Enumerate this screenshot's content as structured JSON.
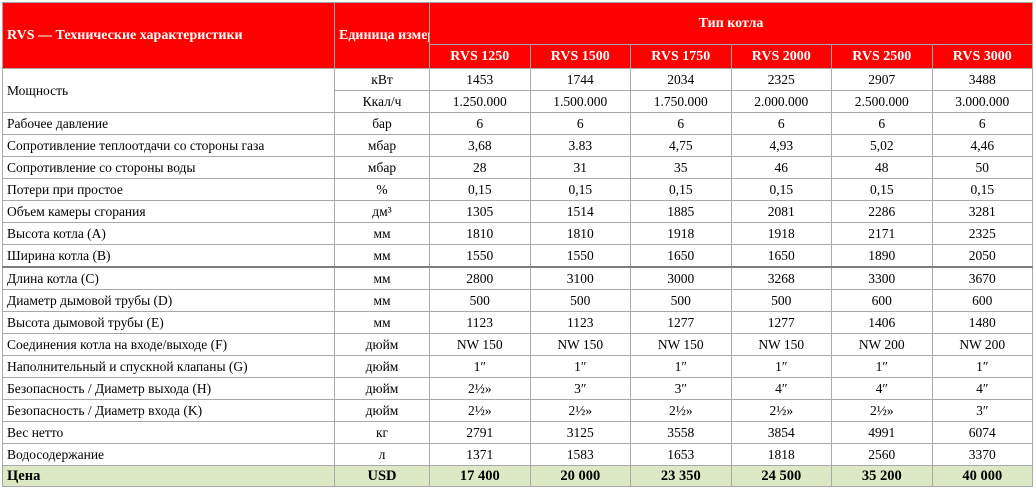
{
  "header": {
    "title": "RVS — Технические характеристики",
    "unit_label": "Единица измерения",
    "type_label": "Тип котла",
    "models": [
      "RVS 1250",
      "RVS 1500",
      "RVS 1750",
      "RVS 2000",
      "RVS 2500",
      "RVS 3000"
    ]
  },
  "power": {
    "label": "Мощность",
    "kw": {
      "unit": "кВт",
      "values": [
        "1453",
        "1744",
        "2034",
        "2325",
        "2907",
        "3488"
      ]
    },
    "kcal": {
      "unit": "Ккал/ч",
      "values": [
        "1.250.000",
        "1.500.000",
        "1.750.000",
        "2.000.000",
        "2.500.000",
        "3.000.000"
      ]
    }
  },
  "rows": [
    {
      "label": "Рабочее давление",
      "unit": "бар",
      "values": [
        "6",
        "6",
        "6",
        "6",
        "6",
        "6"
      ]
    },
    {
      "label": "Сопротивление теплоотдачи со стороны газа",
      "unit": "мбар",
      "values": [
        "3,68",
        "3.83",
        "4,75",
        "4,93",
        "5,02",
        "4,46"
      ]
    },
    {
      "label": "Сопротивление со стороны воды",
      "unit": "мбар",
      "values": [
        "28",
        "31",
        "35",
        "46",
        "48",
        "50"
      ]
    },
    {
      "label": "Потери при простое",
      "unit": "%",
      "values": [
        "0,15",
        "0,15",
        "0,15",
        "0,15",
        "0,15",
        "0,15"
      ]
    },
    {
      "label": "Объем камеры сгорания",
      "unit": "дм³",
      "values": [
        "1305",
        "1514",
        "1885",
        "2081",
        "2286",
        "3281"
      ]
    },
    {
      "label": "Высота котла (А)",
      "unit": "мм",
      "values": [
        "1810",
        "1810",
        "1918",
        "1918",
        "2171",
        "2325"
      ]
    },
    {
      "label": "Ширина котла (В)",
      "unit": "мм",
      "values": [
        "1550",
        "1550",
        "1650",
        "1650",
        "1890",
        "2050"
      ]
    },
    {
      "label": "Длина котла (С)",
      "unit": "мм",
      "values": [
        "2800",
        "3100",
        "3000",
        "3268",
        "3300",
        "3670"
      ]
    },
    {
      "label": "Диаметр дымовой трубы (D)",
      "unit": "мм",
      "values": [
        "500",
        "500",
        "500",
        "500",
        "600",
        "600"
      ]
    },
    {
      "label": "Высота дымовой трубы (Е)",
      "unit": "мм",
      "values": [
        "1123",
        "1123",
        "1277",
        "1277",
        "1406",
        "1480"
      ]
    },
    {
      "label": "Соединения котла на входе/выходе (F)",
      "unit": "дюйм",
      "values": [
        "NW 150",
        "NW 150",
        "NW 150",
        "NW 150",
        "NW 200",
        "NW 200"
      ]
    },
    {
      "label": "Наполнительный и спускной клапаны (G)",
      "unit": "дюйм",
      "values": [
        "1″",
        "1″",
        "1″",
        "1″",
        "1″",
        "1″"
      ]
    },
    {
      "label": "Безопасность / Диаметр выхода (H)",
      "unit": "дюйм",
      "values": [
        "2½»",
        "3″",
        "3″",
        "4″",
        "4″",
        "4″"
      ]
    },
    {
      "label": "Безопасность / Диаметр входа (K)",
      "unit": "дюйм",
      "values": [
        "2½»",
        "2½»",
        "2½»",
        "2½»",
        "2½»",
        "3″"
      ]
    },
    {
      "label": "Вес нетто",
      "unit": "кг",
      "values": [
        "2791",
        "3125",
        "3558",
        "3854",
        "4991",
        "6074"
      ]
    },
    {
      "label": "Водосодержание",
      "unit": "л",
      "values": [
        "1371",
        "1583",
        "1653",
        "1818",
        "2560",
        "3370"
      ]
    }
  ],
  "price": {
    "label": "Цена",
    "unit": "USD",
    "values": [
      "17 400",
      "20 000",
      "23 350",
      "24 500",
      "35 200",
      "40 000"
    ]
  }
}
